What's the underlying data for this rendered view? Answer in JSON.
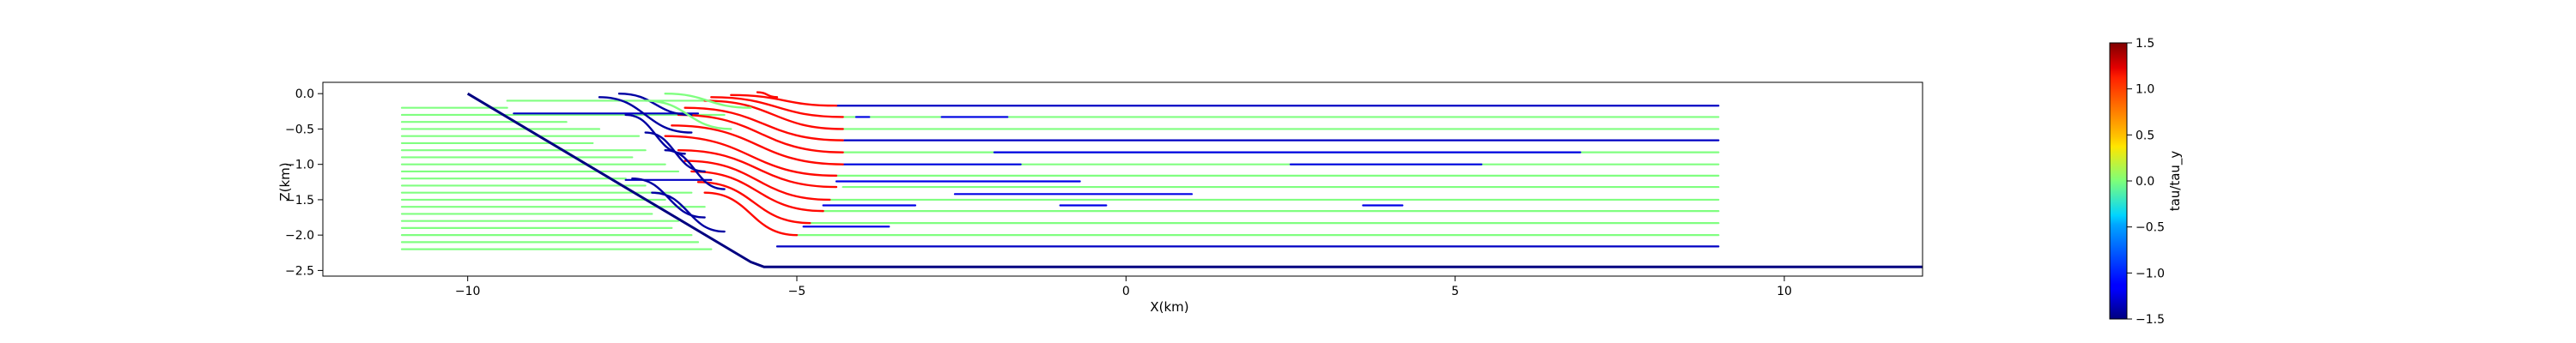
{
  "chart_data": {
    "type": "line",
    "title": "",
    "xlabel": "X(km)",
    "ylabel": "Z(km)",
    "xlim": [
      -12.2,
      12.1
    ],
    "ylim": [
      -2.58,
      0.16
    ],
    "xticks": [
      -10,
      -5,
      0,
      5,
      10
    ],
    "xtick_labels": [
      "−10",
      "−5",
      "0",
      "5",
      "10"
    ],
    "yticks": [
      0.0,
      -0.5,
      -1.0,
      -1.5,
      -2.0,
      -2.5
    ],
    "ytick_labels": [
      "0.0",
      "−0.5",
      "−1.0",
      "−1.5",
      "−2.0",
      "−2.5"
    ],
    "grid": false,
    "colormap": "jet",
    "colorbar": {
      "label": "tau/tau_y",
      "range": [
        -1.5,
        1.5
      ],
      "ticks": [
        1.5,
        1.0,
        0.5,
        0.0,
        -0.5,
        -1.0,
        -1.5
      ],
      "tick_labels": [
        "1.5",
        "1.0",
        "0.5",
        "0.0",
        "−0.5",
        "−1.0",
        "−1.5"
      ]
    },
    "boundary": {
      "name": "boundary",
      "color": "#000080",
      "x": [
        -10.0,
        -5.7,
        -5.5,
        12.1
      ],
      "z": [
        0.0,
        -2.38,
        -2.45,
        -2.45
      ]
    },
    "streamlines": [
      {
        "z": -0.2,
        "x": [
          -11.0,
          -9.4
        ],
        "tau": 0.0
      },
      {
        "z": -0.3,
        "x": [
          -11.0,
          -6.1
        ],
        "tau": 0.0
      },
      {
        "z": -0.4,
        "x": [
          -11.0,
          -8.5
        ],
        "tau": 0.0
      },
      {
        "z": -0.5,
        "x": [
          -11.0,
          -8.0
        ],
        "tau": 0.0
      },
      {
        "z": -0.6,
        "x": [
          -11.0,
          -7.4
        ],
        "tau": 0.0
      },
      {
        "z": -0.7,
        "x": [
          -11.0,
          -8.1
        ],
        "tau": 0.0
      },
      {
        "z": -0.8,
        "x": [
          -11.0,
          -7.3
        ],
        "tau": 0.0
      },
      {
        "z": -0.9,
        "x": [
          -11.0,
          -7.5
        ],
        "tau": 0.0
      },
      {
        "z": -1.0,
        "x": [
          -11.0,
          -7.0
        ],
        "tau": 0.0
      },
      {
        "z": -1.1,
        "x": [
          -11.0,
          -6.8
        ],
        "tau": 0.0
      },
      {
        "z": -1.2,
        "x": [
          -11.0,
          -7.6
        ],
        "tau": 0.0
      },
      {
        "z": -1.3,
        "x": [
          -11.0,
          -7.3
        ],
        "tau": 0.0
      },
      {
        "z": -1.4,
        "x": [
          -11.0,
          -6.6
        ],
        "tau": 0.0
      },
      {
        "z": -1.5,
        "x": [
          -11.0,
          -7.0
        ],
        "tau": 0.0
      },
      {
        "z": -1.6,
        "x": [
          -11.0,
          -6.4
        ],
        "tau": 0.0
      },
      {
        "z": -1.7,
        "x": [
          -11.0,
          -7.2
        ],
        "tau": 0.0
      },
      {
        "z": -1.8,
        "x": [
          -11.0,
          -6.8
        ],
        "tau": 0.0
      },
      {
        "z": -1.9,
        "x": [
          -11.0,
          -6.9
        ],
        "tau": 0.0
      },
      {
        "z": -2.0,
        "x": [
          -11.0,
          -6.6
        ],
        "tau": 0.0
      },
      {
        "z": -2.1,
        "x": [
          -11.0,
          -6.5
        ],
        "tau": 0.0
      },
      {
        "z": -2.2,
        "x": [
          -11.0,
          -6.3
        ],
        "tau": 0.0
      },
      {
        "z": -0.17,
        "x": [
          -4.4,
          9.0
        ],
        "tau": -1.3
      },
      {
        "z": -0.33,
        "x": [
          -4.3,
          9.0
        ],
        "tau": 0.0
      },
      {
        "z": -0.5,
        "x": [
          -4.3,
          9.0
        ],
        "tau": 0.0
      },
      {
        "z": -0.66,
        "x": [
          -4.3,
          9.0
        ],
        "tau": -1.3
      },
      {
        "z": -0.83,
        "x": [
          -4.3,
          9.0
        ],
        "tau": 0.0
      },
      {
        "z": -1.0,
        "x": [
          -4.3,
          9.0
        ],
        "tau": 0.0
      },
      {
        "z": -1.16,
        "x": [
          -4.4,
          9.0
        ],
        "tau": 0.0
      },
      {
        "z": -1.32,
        "x": [
          -4.3,
          9.0
        ],
        "tau": 0.0
      },
      {
        "z": -1.5,
        "x": [
          -4.5,
          9.0
        ],
        "tau": 0.0
      },
      {
        "z": -1.66,
        "x": [
          -4.6,
          9.0
        ],
        "tau": 0.0
      },
      {
        "z": -1.83,
        "x": [
          -4.8,
          9.0
        ],
        "tau": 0.0
      },
      {
        "z": -2.0,
        "x": [
          -5.0,
          9.0
        ],
        "tau": 0.0
      },
      {
        "z": -2.16,
        "x": [
          -5.3,
          9.0
        ],
        "tau": -1.3
      },
      {
        "z": -0.33,
        "x": [
          -4.1,
          -3.9
        ],
        "tau": -1.2
      },
      {
        "z": -0.33,
        "x": [
          -2.8,
          -1.8
        ],
        "tau": -1.2
      },
      {
        "z": -0.83,
        "x": [
          -2.0,
          6.9
        ],
        "tau": -1.2
      },
      {
        "z": -1.0,
        "x": [
          -4.3,
          -1.6
        ],
        "tau": -1.2
      },
      {
        "z": -1.0,
        "x": [
          2.5,
          5.4
        ],
        "tau": -1.2
      },
      {
        "z": -1.24,
        "x": [
          -4.4,
          -0.7
        ],
        "tau": -1.2
      },
      {
        "z": -1.42,
        "x": [
          -2.6,
          1.0
        ],
        "tau": -1.2
      },
      {
        "z": -1.58,
        "x": [
          -4.6,
          -3.2
        ],
        "tau": -1.2
      },
      {
        "z": -1.58,
        "x": [
          -1.0,
          -0.3
        ],
        "tau": -1.2
      },
      {
        "z": -1.58,
        "x": [
          3.6,
          4.2
        ],
        "tau": -1.2
      },
      {
        "z": -1.88,
        "x": [
          -4.9,
          -3.6
        ],
        "tau": -1.2
      },
      {
        "z": -0.28,
        "x": [
          -9.3,
          -6.5
        ],
        "tau": -1.3
      },
      {
        "z": -1.22,
        "x": [
          -7.6,
          -6.3
        ],
        "tau": -1.3
      },
      {
        "z": -0.1,
        "x": [
          -9.4,
          -6.3
        ],
        "tau": 0.0
      }
    ],
    "curved_lines": [
      {
        "name": "red-1",
        "tau": 1.1,
        "z0": 0.02,
        "z1": -0.05,
        "x0": -5.6,
        "x1": -5.3
      },
      {
        "name": "red-2",
        "tau": 1.1,
        "z0": -0.02,
        "z1": -0.17,
        "x0": -6.0,
        "x1": -4.4
      },
      {
        "name": "red-3",
        "tau": 1.1,
        "z0": -0.05,
        "z1": -0.33,
        "x0": -6.3,
        "x1": -4.3
      },
      {
        "name": "red-4",
        "tau": 1.1,
        "z0": -0.1,
        "z1": -0.5,
        "x0": -6.4,
        "x1": -4.3
      },
      {
        "name": "red-5",
        "tau": 1.1,
        "z0": -0.2,
        "z1": -0.66,
        "x0": -6.7,
        "x1": -4.3
      },
      {
        "name": "red-6",
        "tau": 1.1,
        "z0": -0.3,
        "z1": -0.83,
        "x0": -6.8,
        "x1": -4.3
      },
      {
        "name": "red-7",
        "tau": 1.1,
        "z0": -0.45,
        "z1": -1.0,
        "x0": -6.9,
        "x1": -4.3
      },
      {
        "name": "red-8",
        "tau": 1.1,
        "z0": -0.6,
        "z1": -1.16,
        "x0": -7.0,
        "x1": -4.4
      },
      {
        "name": "red-9",
        "tau": 1.1,
        "z0": -0.8,
        "z1": -1.32,
        "x0": -6.8,
        "x1": -4.4
      },
      {
        "name": "red-10",
        "tau": 1.1,
        "z0": -0.95,
        "z1": -1.5,
        "x0": -6.7,
        "x1": -4.5
      },
      {
        "name": "red-11",
        "tau": 1.1,
        "z0": -1.1,
        "z1": -1.66,
        "x0": -6.6,
        "x1": -4.6
      },
      {
        "name": "red-12",
        "tau": 1.1,
        "z0": -1.25,
        "z1": -1.83,
        "x0": -6.5,
        "x1": -4.8
      },
      {
        "name": "red-13",
        "tau": 1.1,
        "z0": -1.4,
        "z1": -2.0,
        "x0": -6.4,
        "x1": -5.0
      },
      {
        "name": "blue-1",
        "tau": -1.4,
        "z0": 0.0,
        "z1": -0.3,
        "x0": -7.7,
        "x1": -6.6
      },
      {
        "name": "blue-2",
        "tau": -1.4,
        "z0": -0.05,
        "z1": -0.55,
        "x0": -8.0,
        "x1": -6.6
      },
      {
        "name": "blue-3",
        "tau": -1.4,
        "z0": -0.3,
        "z1": -0.85,
        "x0": -7.6,
        "x1": -6.7
      },
      {
        "name": "blue-4",
        "tau": -1.4,
        "z0": -0.55,
        "z1": -1.1,
        "x0": -7.3,
        "x1": -6.4
      },
      {
        "name": "blue-5",
        "tau": -1.4,
        "z0": -0.8,
        "z1": -1.35,
        "x0": -7.0,
        "x1": -6.1
      },
      {
        "name": "blue-6",
        "tau": -1.4,
        "z0": -1.2,
        "z1": -1.75,
        "x0": -7.5,
        "x1": -6.4
      },
      {
        "name": "blue-7",
        "tau": -1.4,
        "z0": -1.4,
        "z1": -1.95,
        "x0": -7.2,
        "x1": -6.1
      },
      {
        "name": "green-1",
        "tau": 0.0,
        "z0": 0.0,
        "z1": -0.2,
        "x0": -7.0,
        "x1": -5.7
      },
      {
        "name": "green-2",
        "tau": 0.0,
        "z0": -0.1,
        "z1": -0.5,
        "x0": -7.3,
        "x1": -6.0
      }
    ]
  }
}
